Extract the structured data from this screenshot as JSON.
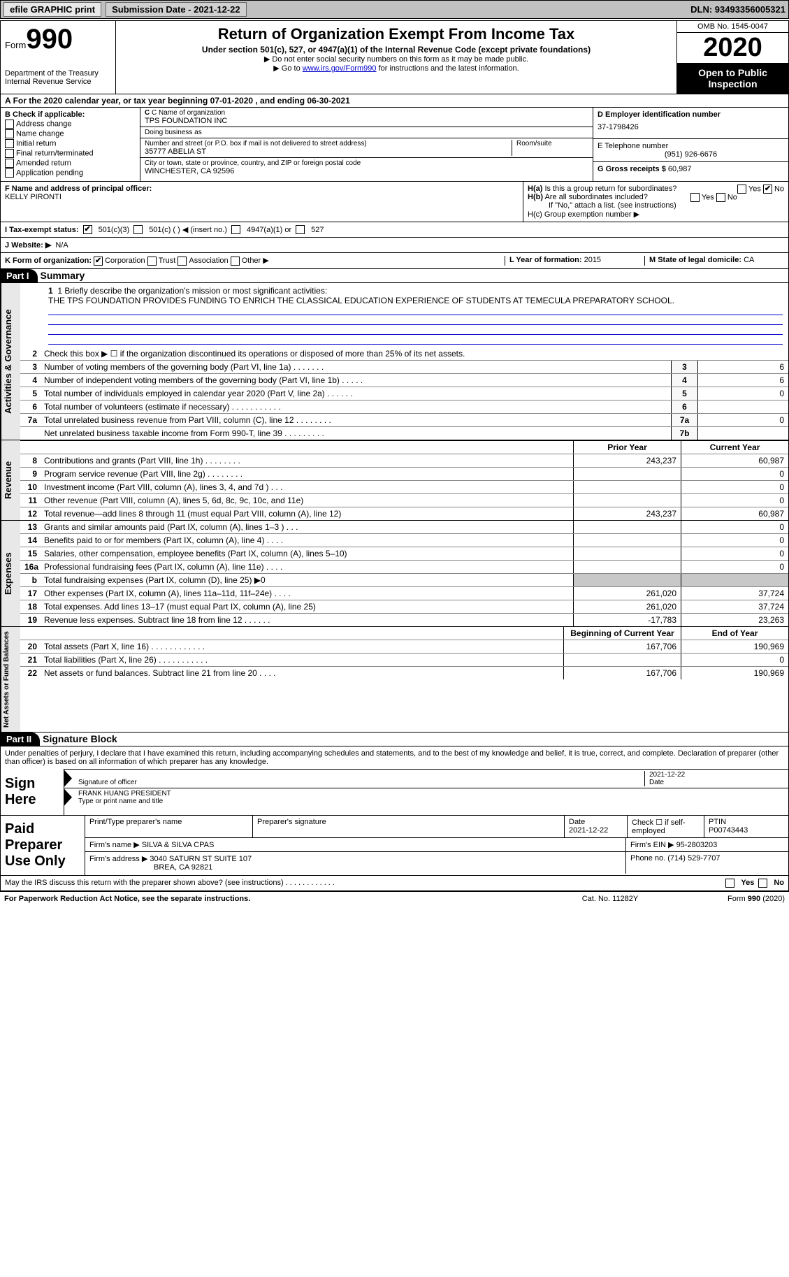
{
  "topbar": {
    "efile": "efile GRAPHIC print",
    "submission": "Submission Date - 2021-12-22",
    "dln": "DLN: 93493356005321"
  },
  "header": {
    "form_word": "Form",
    "form_num": "990",
    "dept": "Department of the Treasury\nInternal Revenue Service",
    "title": "Return of Organization Exempt From Income Tax",
    "subtitle": "Under section 501(c), 527, or 4947(a)(1) of the Internal Revenue Code (except private foundations)",
    "note1": "▶ Do not enter social security numbers on this form as it may be made public.",
    "note2_pre": "▶ Go to ",
    "note2_link": "www.irs.gov/Form990",
    "note2_post": " for instructions and the latest information.",
    "omb": "OMB No. 1545-0047",
    "year": "2020",
    "inspect": "Open to Public Inspection"
  },
  "periodA": "For the 2020 calendar year, or tax year beginning 07-01-2020   , and ending 06-30-2021",
  "boxB": {
    "label": "B Check if applicable:",
    "items": [
      "Address change",
      "Name change",
      "Initial return",
      "Final return/terminated",
      "Amended return",
      "Application pending"
    ]
  },
  "boxC": {
    "name_lbl": "C Name of organization",
    "name": "TPS FOUNDATION INC",
    "dba_lbl": "Doing business as",
    "dba": "",
    "addr_lbl": "Number and street (or P.O. box if mail is not delivered to street address)",
    "addr": "35777 ABELIA ST",
    "room_lbl": "Room/suite",
    "city_lbl": "City or town, state or province, country, and ZIP or foreign postal code",
    "city": "WINCHESTER, CA  92596"
  },
  "boxD": {
    "ein_lbl": "D Employer identification number",
    "ein": "37-1798426",
    "tel_lbl": "E Telephone number",
    "tel": "(951) 926-6676",
    "gross_lbl": "G Gross receipts $",
    "gross": "60,987"
  },
  "boxF": {
    "lbl": "F  Name and address of principal officer:",
    "val": "KELLY PIRONTI"
  },
  "boxH": {
    "ha": "H(a)  Is this a group return for subordinates?",
    "ha_yes": "Yes",
    "ha_no": "No",
    "hb": "H(b)  Are all subordinates included?",
    "hb_note": "If \"No,\" attach a list. (see instructions)",
    "hc": "H(c)  Group exemption number ▶"
  },
  "lineI": {
    "lbl": "I  Tax-exempt status:",
    "o1": "501(c)(3)",
    "o2": "501(c) (  ) ◀ (insert no.)",
    "o3": "4947(a)(1) or",
    "o4": "527"
  },
  "lineJ": {
    "lbl": "J  Website: ▶",
    "val": "N/A"
  },
  "lineK": {
    "lbl": "K Form of organization:",
    "o1": "Corporation",
    "o2": "Trust",
    "o3": "Association",
    "o4": "Other ▶"
  },
  "lineL": {
    "lbl": "L Year of formation:",
    "val": "2015"
  },
  "lineM": {
    "lbl": "M State of legal domicile:",
    "val": "CA"
  },
  "part1": {
    "bar": "Part I",
    "title": "Summary"
  },
  "summary": {
    "q1_lbl": "1  Briefly describe the organization's mission or most significant activities:",
    "q1_val": "THE TPS FOUNDATION PROVIDES FUNDING TO ENRICH THE CLASSICAL EDUCATION EXPERIENCE OF STUDENTS AT TEMECULA PREPARATORY SCHOOL.",
    "q2": "Check this box ▶ ☐  if the organization discontinued its operations or disposed of more than 25% of its net assets.",
    "rows_gov": [
      {
        "n": "3",
        "t": "Number of voting members of the governing body (Part VI, line 1a)  .   .   .   .   .   .   .",
        "b": "3",
        "v": "6"
      },
      {
        "n": "4",
        "t": "Number of independent voting members of the governing body (Part VI, line 1b)  .   .   .   .   .",
        "b": "4",
        "v": "6"
      },
      {
        "n": "5",
        "t": "Total number of individuals employed in calendar year 2020 (Part V, line 2a)  .   .   .   .   .   .",
        "b": "5",
        "v": "0"
      },
      {
        "n": "6",
        "t": "Total number of volunteers (estimate if necessary)   .   .   .   .   .   .   .   .   .   .   .",
        "b": "6",
        "v": ""
      },
      {
        "n": "7a",
        "t": "Total unrelated business revenue from Part VIII, column (C), line 12  .   .   .   .   .   .   .   .",
        "b": "7a",
        "v": "0"
      },
      {
        "n": "",
        "t": "Net unrelated business taxable income from Form 990-T, line 39  .   .   .   .   .   .   .   .   .",
        "b": "7b",
        "v": ""
      }
    ],
    "hdr_prior": "Prior Year",
    "hdr_curr": "Current Year",
    "rows_rev": [
      {
        "n": "8",
        "t": "Contributions and grants (Part VIII, line 1h)  .   .   .   .   .   .   .   .",
        "p": "243,237",
        "c": "60,987"
      },
      {
        "n": "9",
        "t": "Program service revenue (Part VIII, line 2g)   .   .   .   .   .   .   .   .",
        "p": "",
        "c": "0"
      },
      {
        "n": "10",
        "t": "Investment income (Part VIII, column (A), lines 3, 4, and 7d )  .   .   .",
        "p": "",
        "c": "0"
      },
      {
        "n": "11",
        "t": "Other revenue (Part VIII, column (A), lines 5, 6d, 8c, 9c, 10c, and 11e)",
        "p": "",
        "c": "0"
      },
      {
        "n": "12",
        "t": "Total revenue—add lines 8 through 11 (must equal Part VIII, column (A), line 12)",
        "p": "243,237",
        "c": "60,987"
      }
    ],
    "rows_exp": [
      {
        "n": "13",
        "t": "Grants and similar amounts paid (Part IX, column (A), lines 1–3 )  .   .   .",
        "p": "",
        "c": "0"
      },
      {
        "n": "14",
        "t": "Benefits paid to or for members (Part IX, column (A), line 4)  .   .   .   .",
        "p": "",
        "c": "0"
      },
      {
        "n": "15",
        "t": "Salaries, other compensation, employee benefits (Part IX, column (A), lines 5–10)",
        "p": "",
        "c": "0"
      },
      {
        "n": "16a",
        "t": "Professional fundraising fees (Part IX, column (A), line 11e)  .   .   .   .",
        "p": "",
        "c": "0"
      },
      {
        "n": "b",
        "t": "Total fundraising expenses (Part IX, column (D), line 25) ▶0",
        "p": "GRAY",
        "c": "GRAY"
      },
      {
        "n": "17",
        "t": "Other expenses (Part IX, column (A), lines 11a–11d, 11f–24e)  .   .   .   .",
        "p": "261,020",
        "c": "37,724"
      },
      {
        "n": "18",
        "t": "Total expenses. Add lines 13–17 (must equal Part IX, column (A), line 25)",
        "p": "261,020",
        "c": "37,724"
      },
      {
        "n": "19",
        "t": "Revenue less expenses. Subtract line 18 from line 12  .   .   .   .   .   .",
        "p": "-17,783",
        "c": "23,263"
      }
    ],
    "hdr_beg": "Beginning of Current Year",
    "hdr_end": "End of Year",
    "rows_net": [
      {
        "n": "20",
        "t": "Total assets (Part X, line 16)  .   .   .   .   .   .   .   .   .   .   .   .",
        "p": "167,706",
        "c": "190,969"
      },
      {
        "n": "21",
        "t": "Total liabilities (Part X, line 26)  .   .   .   .   .   .   .   .   .   .   .",
        "p": "",
        "c": "0"
      },
      {
        "n": "22",
        "t": "Net assets or fund balances. Subtract line 21 from line 20  .   .   .   .",
        "p": "167,706",
        "c": "190,969"
      }
    ],
    "vlabels": {
      "gov": "Activities & Governance",
      "rev": "Revenue",
      "exp": "Expenses",
      "net": "Net Assets or\nFund Balances"
    }
  },
  "part2": {
    "bar": "Part II",
    "title": "Signature Block"
  },
  "sig": {
    "decl": "Under penalties of perjury, I declare that I have examined this return, including accompanying schedules and statements, and to the best of my knowledge and belief, it is true, correct, and complete. Declaration of preparer (other than officer) is based on all information of which preparer has any knowledge.",
    "sign_here": "Sign Here",
    "sig_officer": "Signature of officer",
    "sig_date": "2021-12-22",
    "date_lbl": "Date",
    "name": "FRANK HUANG  PRESIDENT",
    "name_lbl": "Type or print name and title"
  },
  "prep": {
    "label": "Paid Preparer Use Only",
    "r1": {
      "a": "Print/Type preparer's name",
      "b": "Preparer's signature",
      "c": "Date",
      "c2": "2021-12-22",
      "d": "Check ☐ if self-employed",
      "e": "PTIN",
      "e2": "P00743443"
    },
    "r2": {
      "a": "Firm's name    ▶",
      "a2": "SILVA & SILVA CPAS",
      "b": "Firm's EIN ▶",
      "b2": "95-2803203"
    },
    "r3": {
      "a": "Firm's address ▶",
      "a2": "3040 SATURN ST SUITE 107",
      "a3": "BREA, CA  92821",
      "b": "Phone no.",
      "b2": "(714) 529-7707"
    }
  },
  "discuss": {
    "q": "May the IRS discuss this return with the preparer shown above? (see instructions)   .   .   .   .   .   .   .   .   .   .   .   .",
    "y": "Yes",
    "n": "No"
  },
  "footer": {
    "l": "For Paperwork Reduction Act Notice, see the separate instructions.",
    "m": "Cat. No. 11282Y",
    "r": "Form 990 (2020)"
  }
}
